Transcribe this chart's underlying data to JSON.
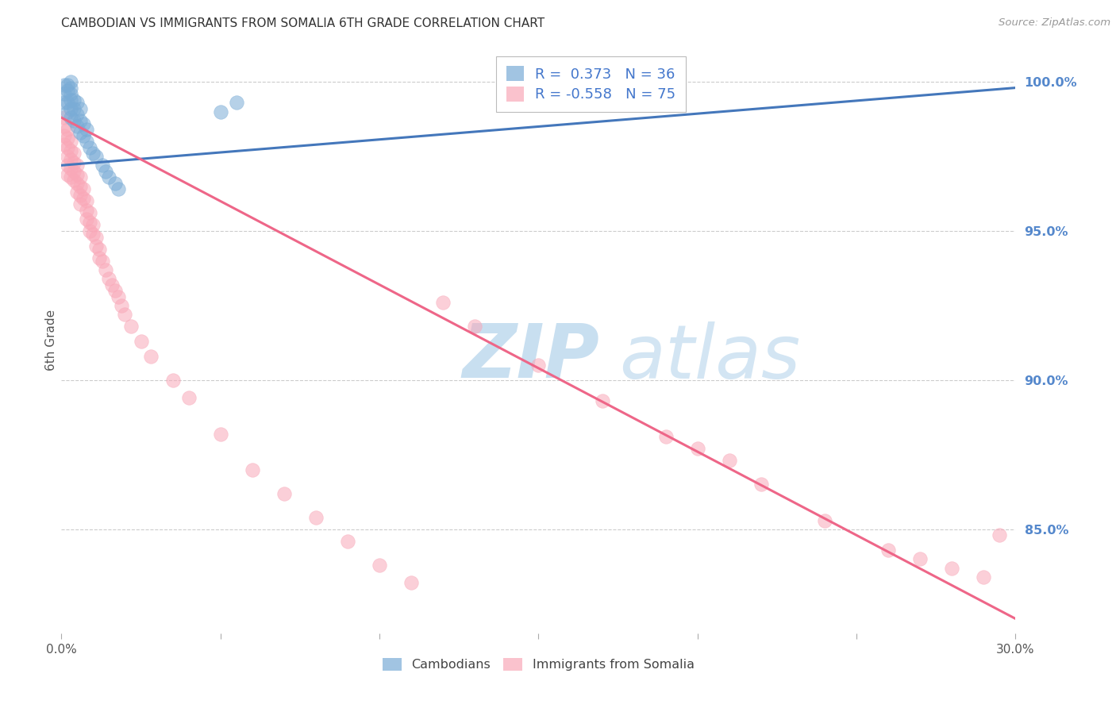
{
  "title": "CAMBODIAN VS IMMIGRANTS FROM SOMALIA 6TH GRADE CORRELATION CHART",
  "source": "Source: ZipAtlas.com",
  "xlabel_ticks": [
    "0.0%",
    "",
    "",
    "",
    "",
    "",
    "30.0%"
  ],
  "xlabel_vals": [
    0.0,
    0.05,
    0.1,
    0.15,
    0.2,
    0.25,
    0.3
  ],
  "ylabel": "6th Grade",
  "ylabel_ticks": [
    "100.0%",
    "95.0%",
    "90.0%",
    "85.0%"
  ],
  "ylabel_vals": [
    1.0,
    0.95,
    0.9,
    0.85
  ],
  "xlim": [
    0.0,
    0.3
  ],
  "ylim": [
    0.815,
    1.012
  ],
  "cambodian_R": 0.373,
  "cambodian_N": 36,
  "somalia_R": -0.558,
  "somalia_N": 75,
  "cambodian_color": "#7aacd6",
  "somalia_color": "#f9a8b8",
  "trendline_cambodian_color": "#4477bb",
  "trendline_somalia_color": "#ee6688",
  "watermark_color": "#c8dff0",
  "background_color": "#ffffff",
  "grid_color": "#cccccc",
  "right_axis_color": "#5588cc",
  "legend_text_color": "#4477cc",
  "cambodian_trend_x0": 0.0,
  "cambodian_trend_y0": 0.972,
  "cambodian_trend_x1": 0.3,
  "cambodian_trend_y1": 0.998,
  "somalia_trend_x0": 0.0,
  "somalia_trend_y0": 0.988,
  "somalia_trend_x1": 0.3,
  "somalia_trend_y1": 0.82,
  "cambodian_x": [
    0.001,
    0.001,
    0.001,
    0.002,
    0.002,
    0.002,
    0.002,
    0.003,
    0.003,
    0.003,
    0.003,
    0.003,
    0.003,
    0.004,
    0.004,
    0.004,
    0.005,
    0.005,
    0.005,
    0.006,
    0.006,
    0.006,
    0.007,
    0.007,
    0.008,
    0.008,
    0.009,
    0.01,
    0.011,
    0.013,
    0.014,
    0.015,
    0.017,
    0.018,
    0.05,
    0.055
  ],
  "cambodian_y": [
    0.993,
    0.996,
    0.999,
    0.99,
    0.993,
    0.997,
    0.999,
    0.988,
    0.991,
    0.994,
    0.996,
    0.998,
    1.0,
    0.987,
    0.991,
    0.994,
    0.985,
    0.989,
    0.993,
    0.983,
    0.987,
    0.991,
    0.982,
    0.986,
    0.98,
    0.984,
    0.978,
    0.976,
    0.975,
    0.972,
    0.97,
    0.968,
    0.966,
    0.964,
    0.99,
    0.993
  ],
  "somalia_x": [
    0.001,
    0.001,
    0.001,
    0.001,
    0.002,
    0.002,
    0.002,
    0.002,
    0.002,
    0.002,
    0.003,
    0.003,
    0.003,
    0.003,
    0.003,
    0.004,
    0.004,
    0.004,
    0.004,
    0.005,
    0.005,
    0.005,
    0.005,
    0.006,
    0.006,
    0.006,
    0.006,
    0.007,
    0.007,
    0.008,
    0.008,
    0.008,
    0.009,
    0.009,
    0.009,
    0.01,
    0.01,
    0.011,
    0.011,
    0.012,
    0.012,
    0.013,
    0.014,
    0.015,
    0.016,
    0.017,
    0.018,
    0.019,
    0.02,
    0.022,
    0.025,
    0.028,
    0.035,
    0.04,
    0.05,
    0.06,
    0.07,
    0.08,
    0.09,
    0.1,
    0.11,
    0.12,
    0.13,
    0.15,
    0.17,
    0.19,
    0.2,
    0.21,
    0.22,
    0.24,
    0.26,
    0.27,
    0.28,
    0.29,
    0.295
  ],
  "somalia_y": [
    0.988,
    0.985,
    0.982,
    0.979,
    0.984,
    0.981,
    0.978,
    0.975,
    0.972,
    0.969,
    0.98,
    0.977,
    0.974,
    0.971,
    0.968,
    0.976,
    0.973,
    0.97,
    0.967,
    0.972,
    0.969,
    0.966,
    0.963,
    0.968,
    0.965,
    0.962,
    0.959,
    0.964,
    0.961,
    0.96,
    0.957,
    0.954,
    0.956,
    0.953,
    0.95,
    0.952,
    0.949,
    0.948,
    0.945,
    0.944,
    0.941,
    0.94,
    0.937,
    0.934,
    0.932,
    0.93,
    0.928,
    0.925,
    0.922,
    0.918,
    0.913,
    0.908,
    0.9,
    0.894,
    0.882,
    0.87,
    0.862,
    0.854,
    0.846,
    0.838,
    0.832,
    0.926,
    0.918,
    0.905,
    0.893,
    0.881,
    0.877,
    0.873,
    0.865,
    0.853,
    0.843,
    0.84,
    0.837,
    0.834,
    0.848
  ]
}
